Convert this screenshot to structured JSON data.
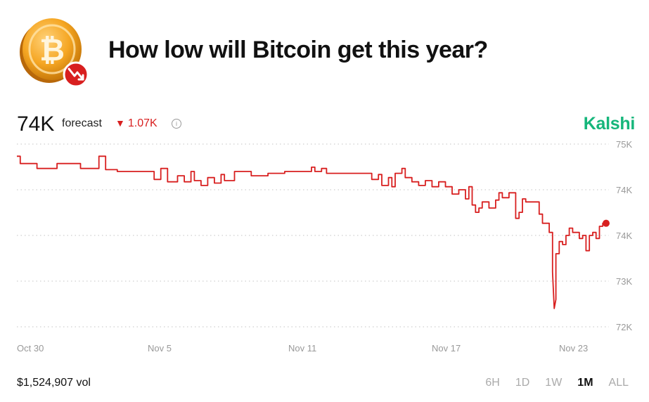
{
  "header": {
    "title": "How low will Bitcoin get this year?",
    "logo_icon": "bitcoin-coin-icon",
    "badge_icon": "trend-down-icon"
  },
  "forecast": {
    "value": "74K",
    "label": "forecast",
    "change": "1.07K",
    "change_direction": "down"
  },
  "brand": {
    "name": "Kalshi",
    "color": "#16b67b"
  },
  "chart_data": {
    "type": "line",
    "series": [
      {
        "color": "#d81f1f",
        "points": [
          [
            0,
            74.8
          ],
          [
            2,
            74.8
          ],
          [
            2,
            74.68
          ],
          [
            12,
            74.68
          ],
          [
            12,
            74.6
          ],
          [
            24,
            74.6
          ],
          [
            24,
            74.68
          ],
          [
            38,
            74.68
          ],
          [
            38,
            74.6
          ],
          [
            49,
            74.6
          ],
          [
            49,
            74.8
          ],
          [
            53,
            74.8
          ],
          [
            53,
            74.58
          ],
          [
            60,
            74.58
          ],
          [
            60,
            74.55
          ],
          [
            82,
            74.55
          ],
          [
            82,
            74.42
          ],
          [
            86,
            74.42
          ],
          [
            86,
            74.6
          ],
          [
            90,
            74.6
          ],
          [
            90,
            74.38
          ],
          [
            96,
            74.38
          ],
          [
            96,
            74.48
          ],
          [
            100,
            74.48
          ],
          [
            100,
            74.38
          ],
          [
            104,
            74.38
          ],
          [
            104,
            74.55
          ],
          [
            106,
            74.55
          ],
          [
            106,
            74.4
          ],
          [
            110,
            74.4
          ],
          [
            110,
            74.32
          ],
          [
            114,
            74.32
          ],
          [
            114,
            74.45
          ],
          [
            118,
            74.45
          ],
          [
            118,
            74.36
          ],
          [
            122,
            74.36
          ],
          [
            122,
            74.5
          ],
          [
            124,
            74.5
          ],
          [
            124,
            74.4
          ],
          [
            130,
            74.4
          ],
          [
            130,
            74.55
          ],
          [
            140,
            74.55
          ],
          [
            140,
            74.48
          ],
          [
            150,
            74.48
          ],
          [
            150,
            74.52
          ],
          [
            160,
            74.52
          ],
          [
            160,
            74.55
          ],
          [
            176,
            74.55
          ],
          [
            176,
            74.62
          ],
          [
            178,
            74.62
          ],
          [
            178,
            74.55
          ],
          [
            182,
            74.55
          ],
          [
            182,
            74.6
          ],
          [
            185,
            74.6
          ],
          [
            185,
            74.52
          ],
          [
            212,
            74.52
          ],
          [
            212,
            74.42
          ],
          [
            216,
            74.42
          ],
          [
            216,
            74.5
          ],
          [
            218,
            74.5
          ],
          [
            218,
            74.32
          ],
          [
            222,
            74.32
          ],
          [
            222,
            74.45
          ],
          [
            224,
            74.45
          ],
          [
            224,
            74.3
          ],
          [
            226,
            74.3
          ],
          [
            226,
            74.52
          ],
          [
            230,
            74.52
          ],
          [
            230,
            74.6
          ],
          [
            232,
            74.6
          ],
          [
            232,
            74.45
          ],
          [
            236,
            74.45
          ],
          [
            236,
            74.38
          ],
          [
            240,
            74.38
          ],
          [
            240,
            74.32
          ],
          [
            244,
            74.32
          ],
          [
            244,
            74.4
          ],
          [
            248,
            74.4
          ],
          [
            248,
            74.3
          ],
          [
            252,
            74.3
          ],
          [
            252,
            74.38
          ],
          [
            256,
            74.38
          ],
          [
            256,
            74.3
          ],
          [
            260,
            74.3
          ],
          [
            260,
            74.18
          ],
          [
            264,
            74.18
          ],
          [
            264,
            74.25
          ],
          [
            268,
            74.25
          ],
          [
            268,
            74.1
          ],
          [
            270,
            74.1
          ],
          [
            270,
            74.3
          ],
          [
            272,
            74.3
          ],
          [
            272,
            74.0
          ],
          [
            274,
            74.0
          ],
          [
            274,
            73.88
          ],
          [
            276,
            73.88
          ],
          [
            276,
            73.95
          ],
          [
            278,
            73.95
          ],
          [
            278,
            74.05
          ],
          [
            282,
            74.05
          ],
          [
            282,
            73.95
          ],
          [
            286,
            73.95
          ],
          [
            286,
            74.08
          ],
          [
            288,
            74.08
          ],
          [
            288,
            74.2
          ],
          [
            290,
            74.2
          ],
          [
            290,
            74.12
          ],
          [
            294,
            74.12
          ],
          [
            294,
            74.2
          ],
          [
            298,
            74.2
          ],
          [
            298,
            73.78
          ],
          [
            300,
            73.78
          ],
          [
            300,
            73.88
          ],
          [
            302,
            73.88
          ],
          [
            302,
            74.1
          ],
          [
            304,
            74.1
          ],
          [
            304,
            74.05
          ],
          [
            312,
            74.05
          ],
          [
            312,
            73.85
          ],
          [
            314,
            73.85
          ],
          [
            314,
            73.7
          ],
          [
            318,
            73.7
          ],
          [
            318,
            73.55
          ],
          [
            320,
            73.55
          ],
          [
            320,
            72.9
          ],
          [
            321,
            72.3
          ],
          [
            322,
            72.45
          ],
          [
            322,
            73.2
          ],
          [
            324,
            73.2
          ],
          [
            324,
            73.4
          ],
          [
            326,
            73.4
          ],
          [
            326,
            73.35
          ],
          [
            328,
            73.35
          ],
          [
            328,
            73.5
          ],
          [
            330,
            73.5
          ],
          [
            330,
            73.62
          ],
          [
            332,
            73.62
          ],
          [
            332,
            73.55
          ],
          [
            336,
            73.55
          ],
          [
            336,
            73.45
          ],
          [
            338,
            73.45
          ],
          [
            338,
            73.5
          ],
          [
            340,
            73.5
          ],
          [
            340,
            73.25
          ],
          [
            342,
            73.25
          ],
          [
            342,
            73.5
          ],
          [
            344,
            73.5
          ],
          [
            344,
            73.55
          ],
          [
            346,
            73.55
          ],
          [
            346,
            73.45
          ],
          [
            348,
            73.45
          ],
          [
            348,
            73.65
          ],
          [
            350,
            73.65
          ],
          [
            350,
            73.7
          ],
          [
            352,
            73.7
          ]
        ]
      }
    ],
    "x_ticks": [
      "Oct 30",
      "Nov 5",
      "Nov 11",
      "Nov 17",
      "Nov 23"
    ],
    "y_ticks": [
      "75K",
      "74K",
      "74K",
      "73K",
      "72K"
    ],
    "ylim": [
      72.0,
      75.0
    ],
    "grid": true,
    "end_point": "marker"
  },
  "footer": {
    "volume": "$1,524,907 vol",
    "ranges": [
      "6H",
      "1D",
      "1W",
      "1M",
      "ALL"
    ],
    "active_range": "1M"
  }
}
